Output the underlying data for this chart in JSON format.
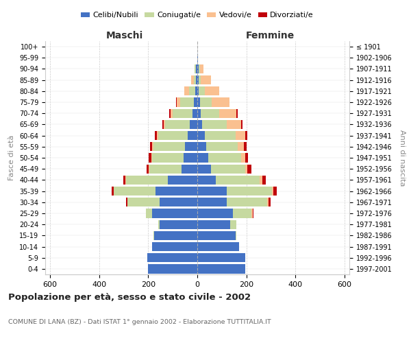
{
  "age_groups": [
    "0-4",
    "5-9",
    "10-14",
    "15-19",
    "20-24",
    "25-29",
    "30-34",
    "35-39",
    "40-44",
    "45-49",
    "50-54",
    "55-59",
    "60-64",
    "65-69",
    "70-74",
    "75-79",
    "80-84",
    "85-89",
    "90-94",
    "95-99",
    "100+"
  ],
  "birth_years": [
    "1997-2001",
    "1992-1996",
    "1987-1991",
    "1982-1986",
    "1977-1981",
    "1972-1976",
    "1967-1971",
    "1962-1966",
    "1957-1961",
    "1952-1956",
    "1947-1951",
    "1942-1946",
    "1937-1941",
    "1932-1936",
    "1927-1931",
    "1922-1926",
    "1917-1921",
    "1912-1916",
    "1907-1911",
    "1902-1906",
    "≤ 1901"
  ],
  "maschi": {
    "celibi": [
      200,
      205,
      185,
      175,
      155,
      185,
      155,
      170,
      120,
      65,
      55,
      50,
      40,
      30,
      20,
      15,
      8,
      5,
      5,
      1,
      1
    ],
    "coniugati": [
      0,
      0,
      0,
      5,
      5,
      25,
      130,
      170,
      170,
      130,
      130,
      130,
      120,
      100,
      80,
      55,
      25,
      10,
      5,
      0,
      0
    ],
    "vedovi": [
      0,
      0,
      0,
      0,
      0,
      0,
      0,
      0,
      2,
      2,
      3,
      3,
      5,
      8,
      10,
      15,
      20,
      10,
      2,
      0,
      0
    ],
    "divorziati": [
      0,
      0,
      0,
      0,
      0,
      0,
      5,
      10,
      10,
      10,
      10,
      10,
      8,
      5,
      5,
      2,
      0,
      0,
      0,
      0,
      0
    ]
  },
  "femmine": {
    "nubili": [
      195,
      195,
      170,
      155,
      135,
      145,
      120,
      120,
      75,
      55,
      45,
      35,
      30,
      20,
      15,
      10,
      5,
      5,
      5,
      2,
      1
    ],
    "coniugate": [
      0,
      0,
      0,
      5,
      25,
      75,
      165,
      185,
      180,
      140,
      135,
      130,
      125,
      100,
      75,
      50,
      25,
      10,
      5,
      0,
      0
    ],
    "vedove": [
      0,
      0,
      0,
      0,
      0,
      5,
      5,
      5,
      10,
      10,
      15,
      25,
      40,
      60,
      70,
      70,
      60,
      40,
      15,
      2,
      0
    ],
    "divorziate": [
      0,
      0,
      0,
      0,
      0,
      5,
      10,
      15,
      15,
      15,
      12,
      12,
      10,
      5,
      5,
      2,
      0,
      0,
      0,
      0,
      0
    ]
  },
  "colors": {
    "celibi": "#4472C4",
    "coniugati": "#C6D9A0",
    "vedovi": "#FAC090",
    "divorziati": "#C0000A"
  },
  "xlim": 620,
  "xtick_vals": [
    -600,
    -400,
    -200,
    0,
    200,
    400,
    600
  ],
  "title": "Popolazione per età, sesso e stato civile - 2002",
  "subtitle": "COMUNE DI LANA (BZ) - Dati ISTAT 1° gennaio 2002 - Elaborazione TUTTITALIA.IT",
  "ylabel": "Fasce di età",
  "ylabel_right": "Anni di nascita",
  "xlabel_maschi": "Maschi",
  "xlabel_femmine": "Femmine",
  "legend_labels": [
    "Celibi/Nubili",
    "Coniugati/e",
    "Vedovi/e",
    "Divorziati/e"
  ],
  "bg_color": "#FFFFFF",
  "grid_color": "#CCCCCC"
}
